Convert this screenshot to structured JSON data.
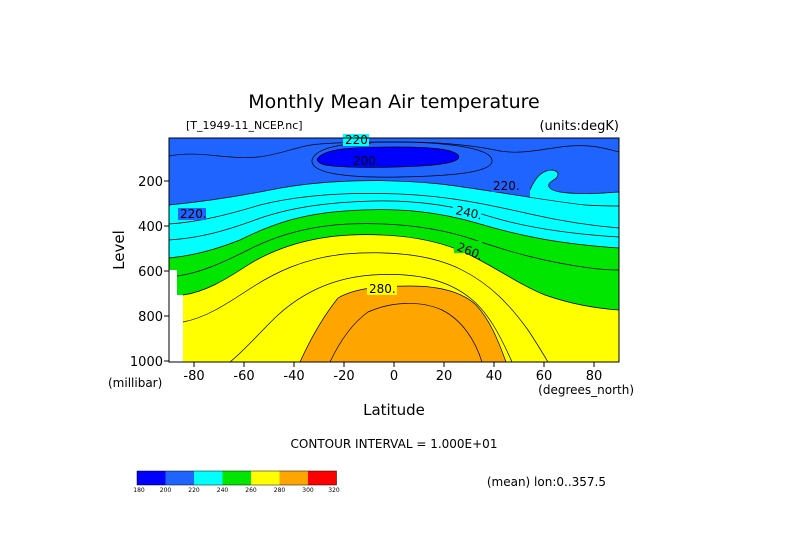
{
  "chart_data": {
    "type": "contour",
    "title": "Monthly Mean Air temperature",
    "file_label": "[T_1949-11_NCEP.nc]",
    "units_label": "(units:degK)",
    "xlabel": "Latitude",
    "x_units": "(degrees_north)",
    "ylabel": "Level",
    "y_units": "(millibar)",
    "xlim": [
      -90,
      90
    ],
    "ylim": [
      1000,
      10
    ],
    "y_inverted": true,
    "x_ticks": [
      "-80",
      "-60",
      "-40",
      "-20",
      "0",
      "20",
      "40",
      "60",
      "80"
    ],
    "x_tick_values": [
      -80,
      -60,
      -40,
      -20,
      0,
      20,
      40,
      60,
      80
    ],
    "y_ticks": [
      "200",
      "400",
      "600",
      "800",
      "1000"
    ],
    "y_tick_values": [
      200,
      400,
      600,
      800,
      1000
    ],
    "contour_interval_text": "CONTOUR INTERVAL = 1.000E+01",
    "footer_text": "(mean) lon:0..357.5",
    "contour_labels": [
      {
        "text": "220.",
        "lat": -15,
        "lev": 10
      },
      {
        "text": "200.",
        "lat": -12,
        "lev": 100
      },
      {
        "text": "220.",
        "lat": 45,
        "lev": 200
      },
      {
        "text": "220.",
        "lat": -82,
        "lev": 335
      },
      {
        "text": "240.",
        "lat": 29,
        "lev": 320
      },
      {
        "text": "260.",
        "lat": 30,
        "lev": 490
      },
      {
        "text": "280.",
        "lat": -5,
        "lev": 730
      }
    ],
    "levels": [
      180,
      200,
      220,
      240,
      260,
      280,
      300,
      320
    ],
    "colorbar": {
      "colors": [
        "#0000ff",
        "#1f64ff",
        "#00ffff",
        "#00e600",
        "#ffff00",
        "#ffa500",
        "#ff0000"
      ],
      "labels": [
        "180",
        "200",
        "220",
        "240",
        "260",
        "280",
        "300",
        "320"
      ]
    },
    "region_colors": {
      "band_200_220": "#1f64ff",
      "band_180_200": "#0000ff",
      "band_220_240": "#00ffff",
      "band_240_260": "#00e600",
      "band_260_280": "#ffff00",
      "band_280_300": "#ffa500",
      "missing": "#ffffff"
    }
  }
}
